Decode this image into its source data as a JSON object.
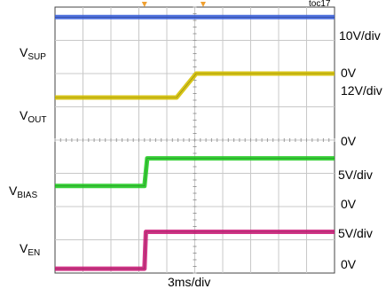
{
  "figure_ref": "toc17",
  "time_scale": "3ms/div",
  "left_labels": [
    {
      "main": "V",
      "sub": "SUP"
    },
    {
      "main": "V",
      "sub": "OUT"
    },
    {
      "main": "V",
      "sub": "BIAS"
    },
    {
      "main": "V",
      "sub": "EN"
    }
  ],
  "right_labels": [
    "10V/div",
    "0V",
    "12V/div",
    "0V",
    "5V/div",
    "0V",
    "5V/div",
    "0V"
  ],
  "chart_data": {
    "type": "line",
    "title": "",
    "xlabel": "3ms/div",
    "ylabel": "",
    "grid": true,
    "x_divisions": 10,
    "y_divisions": 8,
    "trigger_markers_div": [
      3.2,
      5.3
    ],
    "series": [
      {
        "name": "VSUP",
        "color": "#3a5fd9",
        "scale": "10V/div",
        "x_div": [
          0,
          10
        ],
        "y_div": [
          7.7,
          7.7
        ]
      },
      {
        "name": "VOUT",
        "color": "#d4c000",
        "scale": "12V/div",
        "x_div": [
          0,
          4.35,
          5.05,
          10
        ],
        "y_div": [
          5.28,
          5.28,
          6.0,
          6.0
        ]
      },
      {
        "name": "VBIAS",
        "color": "#22cc22",
        "scale": "5V/div",
        "x_div": [
          0,
          3.2,
          3.3,
          10
        ],
        "y_div": [
          2.62,
          2.62,
          3.45,
          3.45
        ]
      },
      {
        "name": "VEN",
        "color": "#cc1f7a",
        "scale": "5V/div",
        "x_div": [
          0,
          3.2,
          3.25,
          10
        ],
        "y_div": [
          0.13,
          0.13,
          1.24,
          1.24
        ]
      }
    ]
  }
}
